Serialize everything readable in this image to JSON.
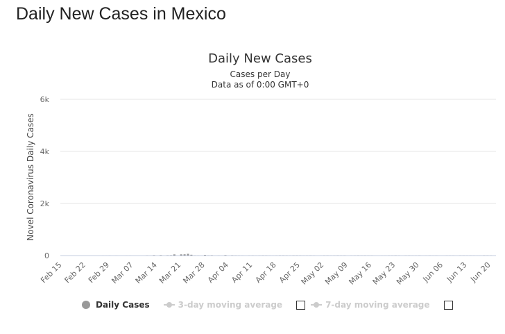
{
  "page": {
    "heading": "Daily New Cases in Mexico"
  },
  "chart_data": {
    "type": "bar",
    "title": "Daily New Cases",
    "subtitle_lines": [
      "Cases per Day",
      "Data as of 0:00 GMT+0"
    ],
    "ylabel": "Novel Coronavirus Daily Cases",
    "xlabel": "",
    "ylim": [
      0,
      6000
    ],
    "yticks": [
      0,
      2000,
      4000,
      6000
    ],
    "ytick_labels": [
      "0",
      "2k",
      "4k",
      "6k"
    ],
    "grid": true,
    "bar_color": "#999999",
    "xtick_labels": [
      "Feb 15",
      "Feb 22",
      "Feb 29",
      "Mar 07",
      "Mar 14",
      "Mar 21",
      "Mar 28",
      "Apr 04",
      "Apr 11",
      "Apr 18",
      "Apr 25",
      "May 02",
      "May 09",
      "May 16",
      "May 23",
      "May 30",
      "Jun 06",
      "Jun 13",
      "Jun 20"
    ],
    "categories": [
      "Feb 15",
      "Feb 16",
      "Feb 17",
      "Feb 18",
      "Feb 19",
      "Feb 20",
      "Feb 21",
      "Feb 22",
      "Feb 23",
      "Feb 24",
      "Feb 25",
      "Feb 26",
      "Feb 27",
      "Feb 28",
      "Feb 29",
      "Mar 01",
      "Mar 02",
      "Mar 03",
      "Mar 04",
      "Mar 05",
      "Mar 06",
      "Mar 07",
      "Mar 08",
      "Mar 09",
      "Mar 10",
      "Mar 11",
      "Mar 12",
      "Mar 13",
      "Mar 14",
      "Mar 15",
      "Mar 16",
      "Mar 17",
      "Mar 18",
      "Mar 19",
      "Mar 20",
      "Mar 21",
      "Mar 22",
      "Mar 23",
      "Mar 24",
      "Mar 25",
      "Mar 26",
      "Mar 27",
      "Mar 28",
      "Mar 29",
      "Mar 30",
      "Mar 31",
      "Apr 01",
      "Apr 02",
      "Apr 03",
      "Apr 04",
      "Apr 05",
      "Apr 06",
      "Apr 07",
      "Apr 08",
      "Apr 09",
      "Apr 10",
      "Apr 11",
      "Apr 12",
      "Apr 13",
      "Apr 14",
      "Apr 15",
      "Apr 16",
      "Apr 17",
      "Apr 18",
      "Apr 19",
      "Apr 20",
      "Apr 21",
      "Apr 22",
      "Apr 23",
      "Apr 24",
      "Apr 25",
      "Apr 26",
      "Apr 27",
      "Apr 28",
      "Apr 29",
      "Apr 30",
      "May 01",
      "May 02",
      "May 03",
      "May 04",
      "May 05",
      "May 06",
      "May 07",
      "May 08",
      "May 09",
      "May 10",
      "May 11",
      "May 12",
      "May 13",
      "May 14",
      "May 15",
      "May 16",
      "May 17",
      "May 18",
      "May 19",
      "May 20",
      "May 21",
      "May 22",
      "May 23",
      "May 24",
      "May 25",
      "May 26",
      "May 27",
      "May 28",
      "May 29",
      "May 30",
      "May 31",
      "Jun 01",
      "Jun 02",
      "Jun 03",
      "Jun 04",
      "Jun 05",
      "Jun 06",
      "Jun 07",
      "Jun 08",
      "Jun 09",
      "Jun 10",
      "Jun 11",
      "Jun 12",
      "Jun 13",
      "Jun 14",
      "Jun 15",
      "Jun 16",
      "Jun 17",
      "Jun 18",
      "Jun 19",
      "Jun 20",
      "Jun 21"
    ],
    "series": [
      {
        "name": "Daily Cases",
        "values": [
          0,
          0,
          0,
          0,
          0,
          0,
          0,
          0,
          0,
          0,
          0,
          0,
          1,
          1,
          2,
          0,
          1,
          0,
          0,
          1,
          1,
          0,
          0,
          0,
          0,
          4,
          1,
          14,
          0,
          15,
          0,
          9,
          11,
          45,
          0,
          46,
          48,
          66,
          31,
          4,
          3,
          0,
          24,
          5,
          10,
          0,
          3,
          0,
          17,
          0,
          8,
          4,
          3,
          2,
          0,
          3,
          4,
          1,
          3,
          5,
          4,
          2,
          1,
          3,
          5,
          5,
          4,
          2,
          5,
          5,
          4,
          2,
          3,
          4,
          2,
          0,
          1,
          4,
          4,
          2,
          3,
          5,
          3,
          4,
          0,
          2,
          3,
          5,
          3,
          4,
          3,
          3,
          0,
          0,
          1,
          1,
          3,
          3,
          5,
          3,
          0,
          3,
          4,
          2,
          2,
          4,
          0,
          1,
          3,
          1,
          2,
          0,
          0,
          2,
          2,
          2,
          0,
          3,
          3,
          2,
          3,
          2,
          1,
          1,
          5,
          4,
          3,
          0
        ]
      }
    ],
    "legend": [
      {
        "label": "Daily Cases",
        "enabled": true
      },
      {
        "label": "3-day moving average",
        "enabled": false
      },
      {
        "label": "7-day moving average",
        "enabled": false
      }
    ]
  }
}
